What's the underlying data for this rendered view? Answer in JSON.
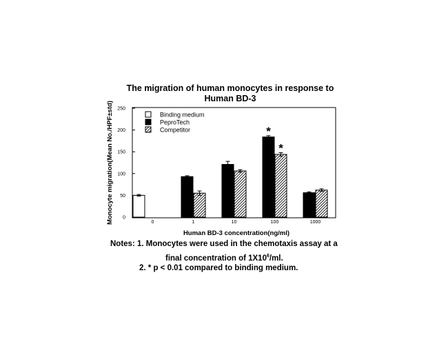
{
  "chart_data": {
    "type": "bar",
    "title_line1": "The migration of human monocytes in response to",
    "title_line2": "Human BD-3",
    "xlabel": "Human BD-3 concentration(ng/ml)",
    "ylabel": "Monocyte migration(Mean No./HPF±std)",
    "ylim": [
      0,
      250
    ],
    "yticks": [
      "0",
      "50",
      "100",
      "150",
      "200",
      "250"
    ],
    "categories": [
      "0",
      "1",
      "10",
      "100",
      "1000"
    ],
    "legend_position": "top-left",
    "series": [
      {
        "name": "Binding medium",
        "fill": "white",
        "values": [
          50,
          null,
          null,
          null,
          null
        ],
        "errors": [
          2,
          null,
          null,
          null,
          null
        ]
      },
      {
        "name": "PeproTech",
        "fill": "black",
        "values": [
          null,
          93,
          121,
          184,
          56
        ],
        "errors": [
          null,
          2,
          7,
          3,
          2
        ]
      },
      {
        "name": "Competitor",
        "fill": "hatched",
        "values": [
          null,
          55,
          106,
          144,
          62
        ],
        "errors": [
          null,
          5,
          3,
          4,
          3
        ]
      }
    ],
    "significance_marker": "*",
    "significant": [
      {
        "series": 1,
        "category": 3
      },
      {
        "series": 2,
        "category": 3
      }
    ]
  },
  "notes": {
    "line1": "Notes:  1.  Monocytes were used in the chemotaxis assay at a",
    "line2_text": "final concentration of 1X10",
    "line2_sup": "6",
    "line2_end": "/ml.",
    "line3": "2. * p < 0.01 compared to binding medium."
  }
}
